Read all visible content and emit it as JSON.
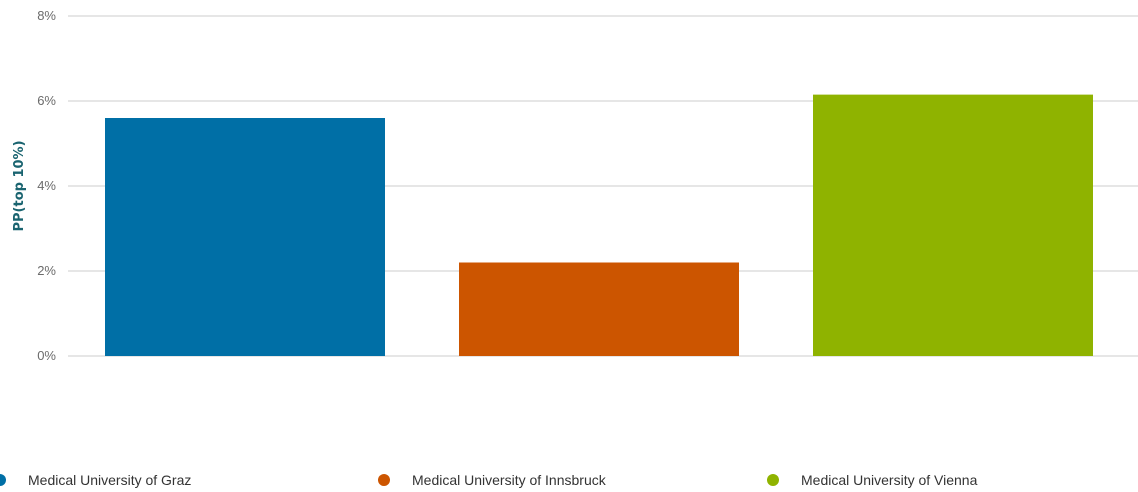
{
  "chart_data": {
    "type": "bar",
    "title": "",
    "xlabel": "",
    "ylabel": "PP(top 10%)",
    "ylim": [
      0,
      8
    ],
    "yticks": [
      "0%",
      "2%",
      "4%",
      "6%",
      "8%"
    ],
    "ytick_values": [
      0,
      2,
      4,
      6,
      8
    ],
    "grid": true,
    "legend_position": "bottom",
    "categories": [
      "Medical University of Graz",
      "Medical University of Innsbruck",
      "Medical University of Vienna"
    ],
    "values": [
      5.6,
      2.2,
      6.15
    ],
    "unit": "%",
    "colors": [
      "#006fa6",
      "#cc5500",
      "#8fb300"
    ]
  },
  "legend": {
    "items": [
      {
        "label": "Medical University of Graz",
        "color": "#006fa6"
      },
      {
        "label": "Medical University of Innsbruck",
        "color": "#cc5500"
      },
      {
        "label": "Medical University of Vienna",
        "color": "#8fb300"
      }
    ]
  },
  "colors": {
    "gridline": "#cccccc",
    "tick_text": "#6b6b6b",
    "ylabel": "#1a6470"
  }
}
